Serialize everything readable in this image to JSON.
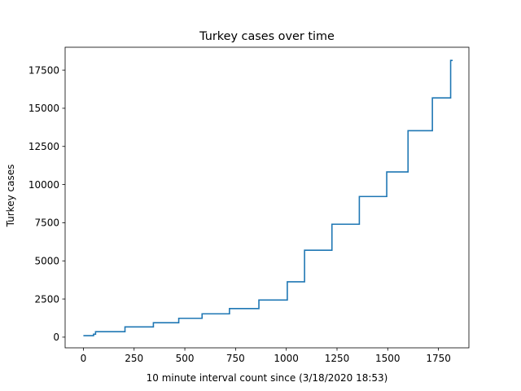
{
  "chart_data": {
    "type": "line",
    "title": "Turkey cases over time",
    "xlabel": "10 minute interval count since (3/18/2020 18:53)",
    "ylabel": "Turkey cases",
    "xlim": [
      -90,
      1900
    ],
    "ylim": [
      -700,
      19000
    ],
    "xticks": [
      0,
      250,
      500,
      750,
      1000,
      1250,
      1500,
      1750
    ],
    "yticks": [
      0,
      2500,
      5000,
      7500,
      10000,
      12500,
      15000,
      17500
    ],
    "grid": false,
    "line_color": "#1f77b4",
    "series": [
      {
        "name": "",
        "step": "post",
        "x": [
          0,
          50,
          60,
          205,
          345,
          470,
          585,
          720,
          865,
          1005,
          1090,
          1225,
          1360,
          1495,
          1600,
          1720,
          1810,
          1820
        ],
        "y": [
          98,
          191,
          359,
          670,
          947,
          1236,
          1529,
          1872,
          2433,
          3629,
          5698,
          7402,
          9217,
          10827,
          13531,
          15679,
          18135,
          18135
        ]
      }
    ]
  }
}
